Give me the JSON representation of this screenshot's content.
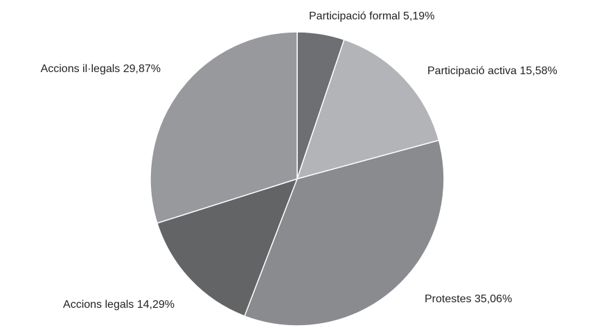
{
  "chart_data": {
    "type": "pie",
    "title": "",
    "slices": [
      {
        "label": "Participació formal",
        "value": 5.19,
        "display": "Participació formal 5,19%",
        "color": "#6e6f73"
      },
      {
        "label": "Participació activa",
        "value": 15.58,
        "display": "Participació activa 15,58%",
        "color": "#b3b4b7"
      },
      {
        "label": "Protestes",
        "value": 35.06,
        "display": "Protestes 35,06%",
        "color": "#8a8b8f"
      },
      {
        "label": "Accions legals",
        "value": 14.29,
        "display": "Accions legals 14,29%",
        "color": "#636466"
      },
      {
        "label": "Accions il·legals",
        "value": 29.87,
        "display": "Accions il·legals 29,87%",
        "color": "#98999d"
      }
    ],
    "start_angle_deg": 0,
    "direction": "clockwise",
    "slice_border_color": "#ffffff"
  }
}
